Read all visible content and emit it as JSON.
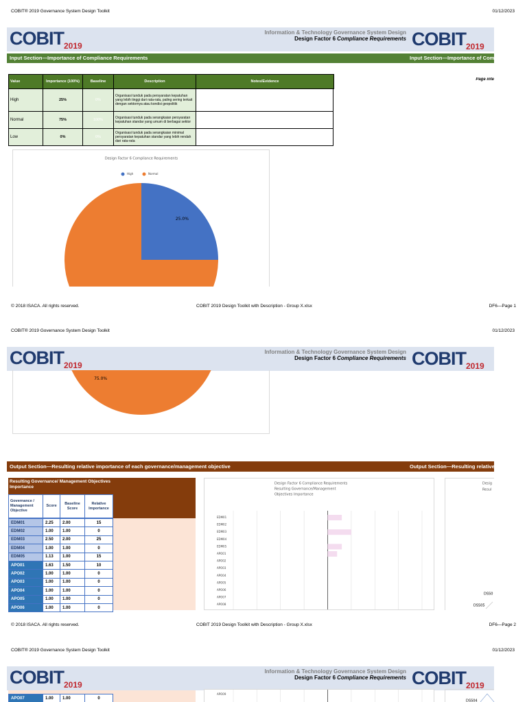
{
  "document_header": {
    "title": "COBIT® 2019 Governance System Design Toolkit",
    "date": "01/12/2023"
  },
  "logo": {
    "word": "COBIT",
    "year": "2019"
  },
  "banner": {
    "line1": "Information & Technology Governance System Design",
    "line2": "Design Factor 6",
    "line2_italic": "Compliance Requirements"
  },
  "input_section": {
    "title": "Input Section—Importance of Compliance Requirements",
    "side_note": "Page inte",
    "table": {
      "columns": [
        "Value",
        "Importance (100%)",
        "Baseline",
        "Description",
        "Notes/Evidence"
      ],
      "rows": [
        {
          "value": "High",
          "importance": "25%",
          "baseline": "0%",
          "description": "Organisasi tunduk pada persyaratan kepatuhan yang lebih tinggi dari rata-rata, paling sering terkait dengan sektornya atau kondisi geopolitik"
        },
        {
          "value": "Normal",
          "importance": "75%",
          "baseline": "100%",
          "description": "Organisasi tunduk pada serangkaian persyaratan kepatuhan standar yang umum di berbagai sektor"
        },
        {
          "value": "Low",
          "importance": "0%",
          "baseline": "0%",
          "description": "Organisasi tunduk pada serangkaian minimal persyaratan kepatuhan standar yang lebih rendah dari rata-rata"
        }
      ]
    }
  },
  "pie_chart": {
    "type": "pie",
    "title": "Design Factor 6 Compliance Requirements",
    "categories": [
      "High",
      "Normal"
    ],
    "values": [
      25,
      75
    ],
    "value_labels": [
      "25.0%",
      "75.0%"
    ],
    "colors": [
      "#4472c4",
      "#ed7d31"
    ]
  },
  "output_section": {
    "title": "Output Section—Resulting relative importance of each governance/management objective",
    "table": {
      "title": "Resulting Governance/ Management Objectives Importance",
      "columns": [
        "Governance / Management Objective",
        "Score",
        "Baseline Score",
        "Relative Importance"
      ],
      "rows": [
        [
          "EDM01",
          "2.25",
          "2.00",
          "15"
        ],
        [
          "EDM02",
          "1.00",
          "1.00",
          "0"
        ],
        [
          "EDM03",
          "2.50",
          "2.00",
          "25"
        ],
        [
          "EDM04",
          "1.00",
          "1.00",
          "0"
        ],
        [
          "EDM05",
          "1.13",
          "1.00",
          "15"
        ],
        [
          "APO01",
          "1.63",
          "1.50",
          "10"
        ],
        [
          "APO02",
          "1.00",
          "1.00",
          "0"
        ],
        [
          "APO03",
          "1.00",
          "1.00",
          "0"
        ],
        [
          "APO04",
          "1.00",
          "1.00",
          "0"
        ],
        [
          "APO05",
          "1.00",
          "1.00",
          "0"
        ],
        [
          "APO06",
          "1.00",
          "1.00",
          "0"
        ],
        [
          "APO07",
          "1.00",
          "1.00",
          "0"
        ]
      ]
    }
  },
  "bar_chart": {
    "type": "bar",
    "orientation": "horizontal",
    "title": [
      "Design Factor 6 Compliance Requirements",
      "Resulting Governance/Management",
      "Objectives Importance"
    ],
    "categories": [
      "EDM01",
      "EDM02",
      "EDM03",
      "EDM04",
      "EDM05",
      "APO01",
      "APO02",
      "APO03",
      "APO04",
      "APO05",
      "APO06",
      "APO07",
      "APO08",
      "APO09"
    ],
    "values": [
      15,
      0,
      25,
      0,
      15,
      10,
      0,
      0,
      0,
      0,
      0,
      0,
      0,
      0
    ],
    "color": "#f4dcef",
    "xlim": [
      -100,
      100
    ],
    "xticks": [
      -100,
      -75,
      -50,
      -25,
      0,
      25,
      50,
      75,
      100
    ],
    "grid": true
  },
  "side_chart": {
    "title": [
      "Desig",
      "Resul"
    ],
    "labels": [
      "DSS0",
      "DSS05",
      "DSS04"
    ]
  },
  "footer": {
    "copyright": "© 2018 ISACA. All rights reserved.",
    "file": "COBIT 2019 Design Toolkit with Description - Group X.xlsx",
    "pages": [
      "DF6—Page 1",
      "DF6—Page 2"
    ]
  }
}
